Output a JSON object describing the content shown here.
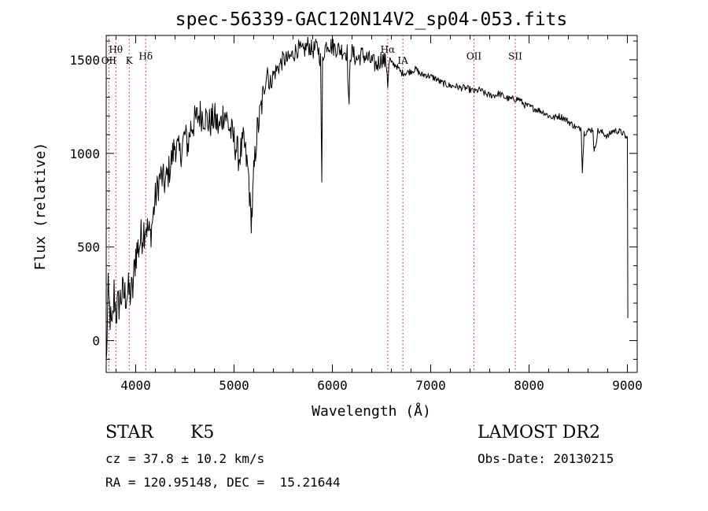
{
  "chart_data": {
    "type": "line",
    "title": "spec-56339-GAC120N14V2_sp04-053.fits",
    "xlabel": "Wavelength (Å)",
    "ylabel": "Flux (relative)",
    "xlim": [
      3700,
      9100
    ],
    "ylim": [
      -170,
      1630
    ],
    "xticks": [
      4000,
      5000,
      6000,
      7000,
      8000,
      9000
    ],
    "yticks": [
      0,
      500,
      1000,
      1500
    ],
    "grid": false,
    "series": [
      {
        "x": [
          3700,
          3720,
          3740,
          3760,
          3780,
          3800,
          3830,
          3860,
          3890,
          3920,
          3950,
          3970,
          4000,
          4030,
          4060,
          4100,
          4150,
          4200,
          4250,
          4300,
          4350,
          4400,
          4450,
          4500,
          4530,
          4560,
          4600,
          4650,
          4700,
          4750,
          4800,
          4850,
          4900,
          4950,
          5000,
          5050,
          5100,
          5150,
          5170,
          5185,
          5200,
          5230,
          5260,
          5300,
          5320,
          5340,
          5360,
          5400,
          5450,
          5500,
          5550,
          5600,
          5650,
          5700,
          5750,
          5800,
          5850,
          5880,
          5893,
          5900,
          5920,
          5950,
          6000,
          6050,
          6100,
          6150,
          6170,
          6180,
          6200,
          6250,
          6300,
          6350,
          6400,
          6450,
          6500,
          6550,
          6563,
          6580,
          6600,
          6650,
          6700,
          6750,
          6800,
          6850,
          6900,
          6950,
          7000,
          7050,
          7100,
          7150,
          7200,
          7250,
          7300,
          7350,
          7400,
          7450,
          7500,
          7550,
          7600,
          7650,
          7700,
          7750,
          7800,
          7850,
          7900,
          7950,
          8000,
          8050,
          8100,
          8150,
          8200,
          8250,
          8300,
          8350,
          8400,
          8450,
          8500,
          8530,
          8542,
          8560,
          8600,
          8650,
          8662,
          8700,
          8750,
          8800,
          8850,
          8900,
          8950,
          8980,
          9000,
          9005
        ],
        "y": [
          -140,
          250,
          130,
          30,
          260,
          150,
          200,
          250,
          240,
          260,
          250,
          270,
          470,
          500,
          560,
          620,
          560,
          760,
          880,
          840,
          930,
          1050,
          990,
          1100,
          1040,
          1140,
          1170,
          1210,
          1200,
          1160,
          1190,
          1130,
          1230,
          1140,
          1070,
          980,
          1060,
          870,
          640,
          700,
          880,
          1100,
          1190,
          1320,
          1390,
          1460,
          1360,
          1420,
          1460,
          1500,
          1500,
          1530,
          1560,
          1540,
          1580,
          1550,
          1570,
          1500,
          810,
          1500,
          1560,
          1590,
          1570,
          1560,
          1550,
          1540,
          1220,
          1530,
          1540,
          1500,
          1530,
          1510,
          1490,
          1470,
          1510,
          1480,
          1380,
          1490,
          1480,
          1470,
          1430,
          1430,
          1440,
          1450,
          1420,
          1420,
          1410,
          1400,
          1380,
          1370,
          1360,
          1360,
          1350,
          1350,
          1340,
          1330,
          1340,
          1320,
          1310,
          1310,
          1320,
          1300,
          1290,
          1290,
          1290,
          1260,
          1250,
          1240,
          1230,
          1220,
          1200,
          1190,
          1200,
          1190,
          1170,
          1150,
          1130,
          1140,
          910,
          1110,
          1120,
          1130,
          1000,
          1120,
          1110,
          1090,
          1120,
          1120,
          1110,
          1090,
          1080,
          120
        ]
      }
    ],
    "lines": [
      {
        "x": 3727,
        "label": "OII",
        "row": 2
      },
      {
        "x": 3798,
        "label": "Hθ",
        "row": 1
      },
      {
        "x": 3934,
        "label": "K",
        "row": 2
      },
      {
        "x": 4102,
        "label": "Hδ",
        "row": 1.6
      },
      {
        "x": 6563,
        "label": "Hα",
        "row": 1
      },
      {
        "x": 6717,
        "label": "IA",
        "row": 2
      },
      {
        "x": 7440,
        "label": "OII",
        "row": 1.6
      },
      {
        "x": 7860,
        "label": "SII",
        "row": 1.6
      }
    ]
  },
  "info": {
    "object_class": "STAR",
    "subclass": "K5",
    "cz": "cz = 37.8 ± 10.2 km/s",
    "coords": "RA = 120.95148, DEC =  15.21644",
    "survey": "LAMOST DR2",
    "obs_date": "Obs-Date: 20130215"
  }
}
